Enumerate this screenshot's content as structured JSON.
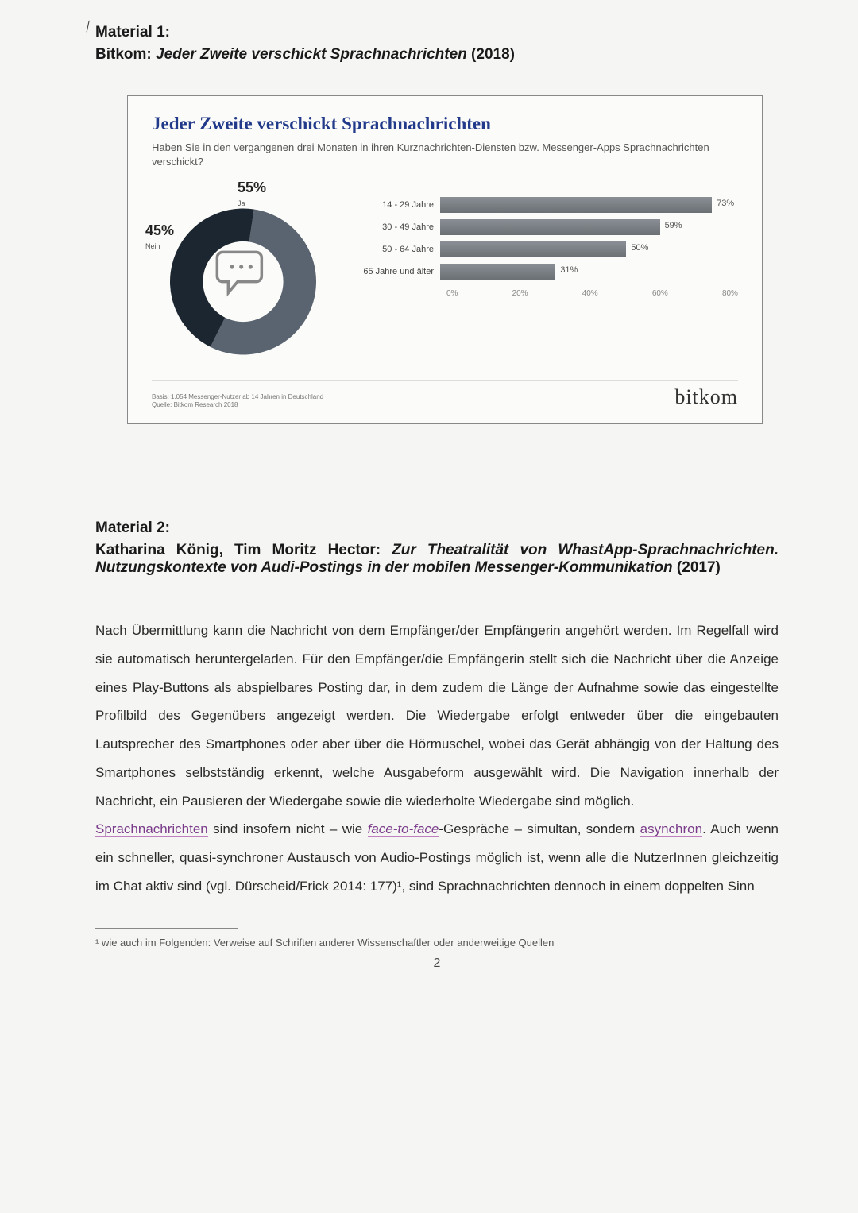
{
  "material1": {
    "heading": "Material 1:",
    "source_prefix": "Bitkom: ",
    "source_title": "Jeder Zweite verschickt Sprachnachrichten",
    "source_year": " (2018)"
  },
  "chart": {
    "title": "Jeder Zweite verschickt Sprachnachrichten",
    "subtitle": "Haben Sie in den vergangenen drei Monaten in ihren Kurznachrichten-Diensten bzw. Messenger-Apps Sprachnachrichten verschickt?",
    "donut": {
      "ja_pct": "55%",
      "ja_label": "Ja",
      "nein_pct": "45%",
      "nein_label": "Nein",
      "ja_value": 55,
      "nein_value": 45,
      "ja_color": "#5a6470",
      "nein_color": "#1c2630",
      "hole_color": "#fbfbf9"
    },
    "bars": {
      "categories": [
        "14 - 29 Jahre",
        "30 - 49 Jahre",
        "50 - 64 Jahre",
        "65 Jahre und älter"
      ],
      "values": [
        73,
        59,
        50,
        31
      ],
      "value_labels": [
        "73%",
        "59%",
        "50%",
        "31%"
      ],
      "max": 80,
      "bar_color_top": "#8a8f95",
      "bar_color_bottom": "#6b7075"
    },
    "axis_ticks": [
      "0%",
      "20%",
      "40%",
      "60%",
      "80%"
    ],
    "footer_note": "Basis: 1.054 Messenger-Nutzer ab 14 Jahren in Deutschland\nQuelle: Bitkom Research 2018",
    "logo": "bitkom"
  },
  "material2": {
    "heading": "Material 2:",
    "authors": "Katharina König, Tim Moritz Hector: ",
    "title": "Zur Theatralität von WhastApp-Sprachnachrichten. Nutzungskontexte von Audi-Postings in der mobilen Messenger-Kommunikation",
    "year": " (2017)"
  },
  "body": {
    "p1": "Nach Übermittlung kann die Nachricht von dem Empfänger/der Empfängerin angehört werden. Im Regelfall wird sie automatisch heruntergeladen.  Für den Empfänger/die Empfängerin stellt sich die Nachricht über die Anzeige eines Play-Buttons als abspielbares Posting dar, in dem zudem die Länge der Aufnahme sowie das eingestellte Profilbild des Gegenübers angezeigt werden. Die Wiedergabe erfolgt entweder über die eingebauten Lautsprecher des Smartphones oder aber über die Hörmuschel, wobei das Gerät abhängig von der Haltung des Smartphones selbstständig erkennt, welche Ausgabeform ausgewählt wird. Die Navigation innerhalb der Nachricht, ein Pausieren der Wiedergabe sowie die wiederholte Wiedergabe sind möglich.",
    "p2_a": "Sprachnachrichten",
    "p2_b": " sind insofern nicht – wie ",
    "p2_c": "face-to-face",
    "p2_d": "-Gespräche – simultan, sondern ",
    "p2_e": "asynchron",
    "p2_f": ". Auch wenn ein schneller, quasi-synchroner Austausch von Audio-Postings möglich ist, wenn alle die NutzerInnen gleichzeitig im Chat aktiv sind (vgl. Dürscheid/Frick 2014: 177)¹, sind Sprachnachrichten dennoch in einem doppelten Sinn"
  },
  "footnote": "¹ wie auch im Folgenden: Verweise auf Schriften anderer Wissenschaftler oder anderweitige Quellen",
  "page_number": "2"
}
